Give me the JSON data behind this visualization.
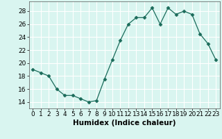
{
  "x": [
    0,
    1,
    2,
    3,
    4,
    5,
    6,
    7,
    8,
    9,
    10,
    11,
    12,
    13,
    14,
    15,
    16,
    17,
    18,
    19,
    20,
    21,
    22,
    23
  ],
  "y": [
    19,
    18.5,
    18,
    16,
    15,
    15,
    14.5,
    14,
    14.2,
    17.5,
    20.5,
    23.5,
    26,
    27,
    27,
    28.5,
    26,
    28.5,
    27.5,
    28,
    27.5,
    24.5,
    23,
    20.5
  ],
  "line_color": "#1a6b5a",
  "marker": "D",
  "marker_size": 2.5,
  "bg_color": "#d9f5f0",
  "grid_color": "#ffffff",
  "grid_minor_color": "#e8faf6",
  "xlabel": "Humidex (Indice chaleur)",
  "xlim": [
    -0.5,
    23.5
  ],
  "ylim": [
    13,
    29.5
  ],
  "yticks": [
    14,
    16,
    18,
    20,
    22,
    24,
    26,
    28
  ],
  "xticks": [
    0,
    1,
    2,
    3,
    4,
    5,
    6,
    7,
    8,
    9,
    10,
    11,
    12,
    13,
    14,
    15,
    16,
    17,
    18,
    19,
    20,
    21,
    22,
    23
  ],
  "tick_fontsize": 6.5,
  "label_fontsize": 7.5
}
